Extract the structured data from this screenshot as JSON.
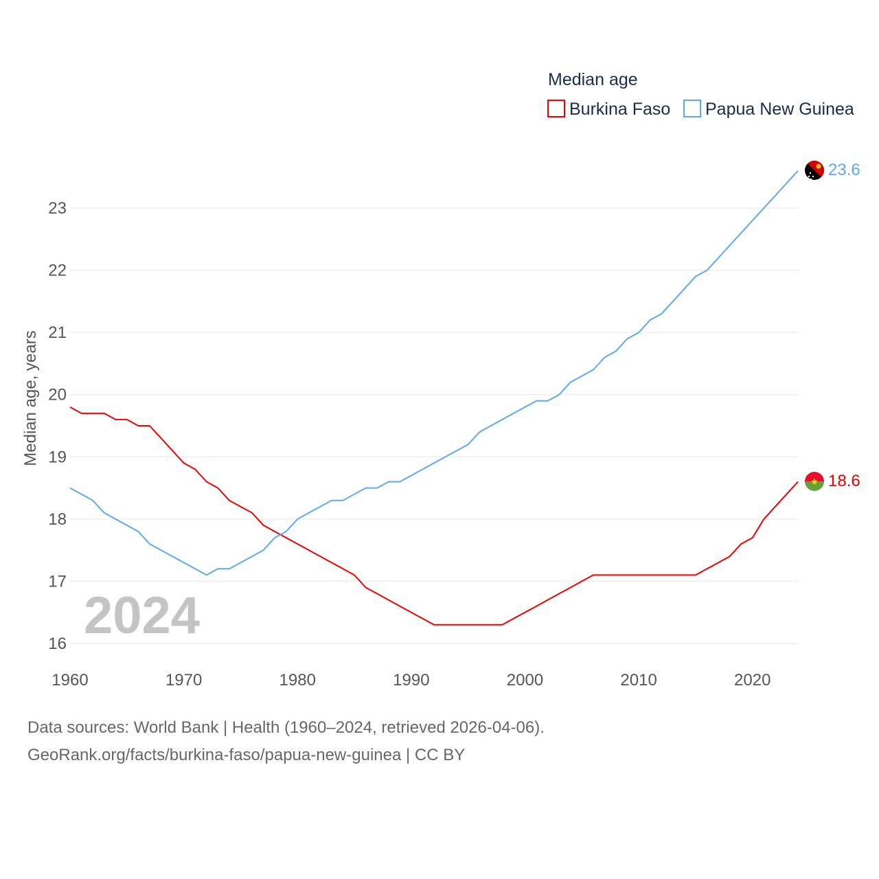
{
  "chart_data": {
    "type": "line",
    "title": "Median age",
    "xlabel": "",
    "ylabel": "Median age, years",
    "xlim": [
      1960,
      2024
    ],
    "ylim": [
      16,
      23.7
    ],
    "x_ticks": [
      1960,
      1970,
      1980,
      1990,
      2000,
      2010,
      2020
    ],
    "y_ticks": [
      16,
      17,
      18,
      19,
      20,
      21,
      22,
      23
    ],
    "grid": true,
    "legend_position": "top-right",
    "watermark_year": "2024",
    "x": [
      1960,
      1961,
      1962,
      1963,
      1964,
      1965,
      1966,
      1967,
      1968,
      1969,
      1970,
      1971,
      1972,
      1973,
      1974,
      1975,
      1976,
      1977,
      1978,
      1979,
      1980,
      1981,
      1982,
      1983,
      1984,
      1985,
      1986,
      1987,
      1988,
      1989,
      1990,
      1991,
      1992,
      1993,
      1994,
      1995,
      1996,
      1997,
      1998,
      1999,
      2000,
      2001,
      2002,
      2003,
      2004,
      2005,
      2006,
      2007,
      2008,
      2009,
      2010,
      2011,
      2012,
      2013,
      2014,
      2015,
      2016,
      2017,
      2018,
      2019,
      2020,
      2021,
      2022,
      2023,
      2024
    ],
    "series": [
      {
        "name": "Burkina Faso",
        "color": "#f00000",
        "end_label": "18.6",
        "values": [
          19.8,
          19.7,
          19.7,
          19.7,
          19.6,
          19.6,
          19.5,
          19.5,
          19.3,
          19.1,
          18.9,
          18.8,
          18.6,
          18.5,
          18.3,
          18.2,
          18.1,
          17.9,
          17.8,
          17.7,
          17.6,
          17.5,
          17.4,
          17.3,
          17.2,
          17.1,
          16.9,
          16.8,
          16.7,
          16.6,
          16.5,
          16.4,
          16.3,
          16.3,
          16.3,
          16.3,
          16.3,
          16.3,
          16.3,
          16.4,
          16.5,
          16.6,
          16.7,
          16.8,
          16.9,
          17.0,
          17.1,
          17.1,
          17.1,
          17.1,
          17.1,
          17.1,
          17.1,
          17.1,
          17.1,
          17.1,
          17.2,
          17.3,
          17.4,
          17.6,
          17.7,
          18.0,
          18.2,
          18.4,
          18.6
        ]
      },
      {
        "name": "Papua New Guinea",
        "color": "#5ea8ee",
        "end_label": "23.6",
        "values": [
          18.5,
          18.4,
          18.3,
          18.1,
          18.0,
          17.9,
          17.8,
          17.6,
          17.5,
          17.4,
          17.3,
          17.2,
          17.1,
          17.2,
          17.2,
          17.3,
          17.4,
          17.5,
          17.7,
          17.8,
          18.0,
          18.1,
          18.2,
          18.3,
          18.3,
          18.4,
          18.5,
          18.5,
          18.6,
          18.6,
          18.7,
          18.8,
          18.9,
          19.0,
          19.1,
          19.2,
          19.4,
          19.5,
          19.6,
          19.7,
          19.8,
          19.9,
          19.9,
          20.0,
          20.2,
          20.3,
          20.4,
          20.6,
          20.7,
          20.9,
          21.0,
          21.2,
          21.3,
          21.5,
          21.7,
          21.9,
          22.0,
          22.2,
          22.4,
          22.6,
          22.8,
          23.0,
          23.2,
          23.4,
          23.6
        ]
      }
    ]
  },
  "footer": {
    "line1": "Data sources: World Bank | Health (1960–2024, retrieved 2026-04-06).",
    "line2": "GeoRank.org/facts/burkina-faso/papua-new-guinea | CC BY"
  }
}
